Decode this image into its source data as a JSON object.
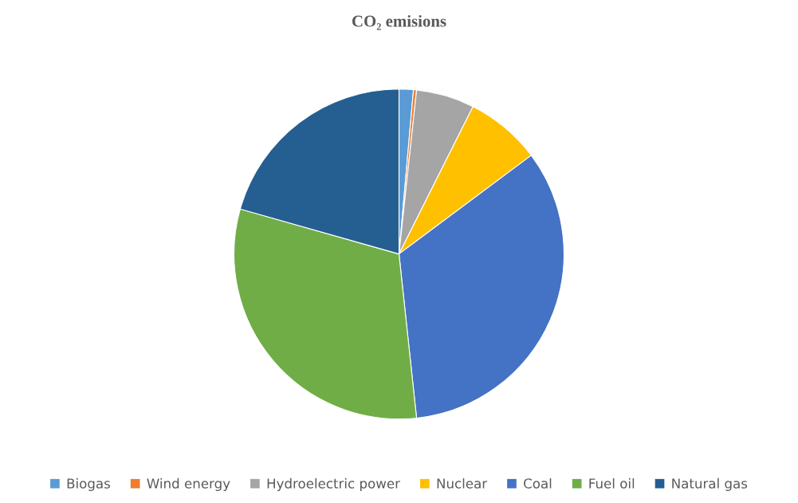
{
  "chart_data": {
    "type": "pie",
    "title": "CO₂ emisions",
    "categories": [
      "Biogas",
      "Wind energy",
      "Hydroelectric power",
      "Nuclear",
      "Coal",
      "Fuel oil",
      "Natural gas"
    ],
    "values": [
      1.4,
      0.3,
      5.7,
      7.4,
      33.5,
      31.1,
      20.6
    ],
    "colors": [
      "#5b9bd5",
      "#ed7d31",
      "#a5a5a5",
      "#ffc000",
      "#4472c4",
      "#70ad47",
      "#255e91"
    ],
    "legend": "bottom"
  }
}
